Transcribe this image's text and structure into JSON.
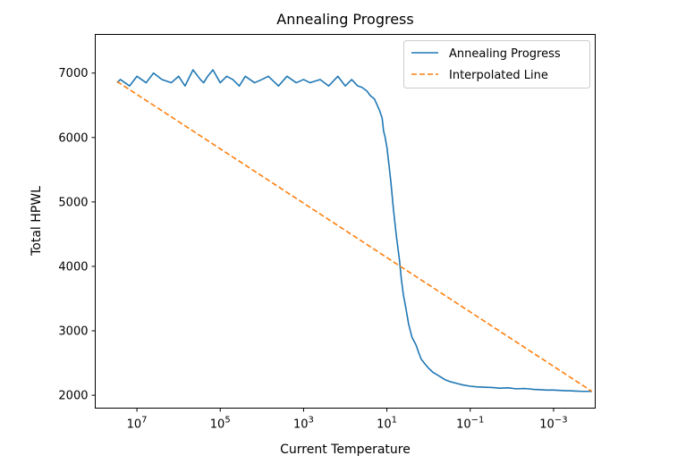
{
  "chart_data": {
    "type": "line",
    "title": "Annealing Progress",
    "xlabel": "Current Temperature",
    "ylabel": "Total HPWL",
    "x_scale": "log",
    "x_reversed": true,
    "xlim": [
      100000000,
      0.0001
    ],
    "ylim": [
      1800,
      7600
    ],
    "x_ticks": [
      {
        "value": 10000000,
        "base": "10",
        "exp": "7"
      },
      {
        "value": 100000,
        "base": "10",
        "exp": "5"
      },
      {
        "value": 1000,
        "base": "10",
        "exp": "3"
      },
      {
        "value": 10,
        "base": "10",
        "exp": "1"
      },
      {
        "value": 0.1,
        "base": "10",
        "exp": "−1"
      },
      {
        "value": 0.001,
        "base": "10",
        "exp": "−3"
      }
    ],
    "y_ticks": [
      {
        "value": 2000,
        "label": "2000"
      },
      {
        "value": 3000,
        "label": "3000"
      },
      {
        "value": 4000,
        "label": "4000"
      },
      {
        "value": 5000,
        "label": "5000"
      },
      {
        "value": 6000,
        "label": "6000"
      },
      {
        "value": 7000,
        "label": "7000"
      }
    ],
    "grid": false,
    "legend_position": "top-right",
    "series": [
      {
        "name": "Annealing Progress",
        "color": "#1f77b4",
        "style": "solid",
        "x": [
          30000000,
          25000000,
          15000000,
          10000000,
          6000000,
          4000000,
          2500000,
          1500000,
          1000000,
          700000,
          450000,
          300000,
          250000,
          200000,
          150000,
          100000,
          70000,
          50000,
          35000,
          25000,
          15000,
          10000,
          7000,
          4000,
          2500,
          1500,
          1000,
          700,
          400,
          250,
          150,
          100,
          70,
          50,
          40,
          30,
          25,
          20,
          17,
          15,
          13,
          12,
          11,
          10,
          9,
          8,
          7,
          6,
          5,
          4.5,
          4,
          3.5,
          3,
          2.5,
          2,
          1.7,
          1.5,
          1.2,
          1,
          0.8,
          0.6,
          0.5,
          0.4,
          0.3,
          0.2,
          0.15,
          0.1,
          0.07,
          0.05,
          0.03,
          0.02,
          0.012,
          0.008,
          0.005,
          0.004,
          0.003,
          0.002,
          0.0015,
          0.001,
          0.0007,
          0.0005,
          0.0004,
          0.0003,
          0.0002,
          0.00015,
          0.00012
        ],
        "y": [
          6850,
          6900,
          6800,
          6950,
          6850,
          7000,
          6900,
          6850,
          6950,
          6800,
          7050,
          6900,
          6850,
          6950,
          7050,
          6850,
          6950,
          6900,
          6800,
          6950,
          6850,
          6900,
          6950,
          6800,
          6950,
          6850,
          6900,
          6850,
          6900,
          6800,
          6950,
          6800,
          6900,
          6800,
          6780,
          6720,
          6650,
          6600,
          6500,
          6420,
          6300,
          6100,
          6000,
          5850,
          5600,
          5300,
          4900,
          4500,
          4100,
          3800,
          3550,
          3350,
          3100,
          2900,
          2780,
          2650,
          2560,
          2480,
          2420,
          2360,
          2310,
          2280,
          2240,
          2210,
          2180,
          2160,
          2140,
          2130,
          2125,
          2120,
          2110,
          2115,
          2100,
          2105,
          2100,
          2090,
          2085,
          2080,
          2080,
          2075,
          2070,
          2070,
          2065,
          2060,
          2060,
          2060
        ]
      },
      {
        "name": "Interpolated Line",
        "color": "#ff7f0e",
        "style": "dashed",
        "x": [
          30000000,
          0.00012
        ],
        "y": [
          6870,
          2060
        ]
      }
    ]
  }
}
